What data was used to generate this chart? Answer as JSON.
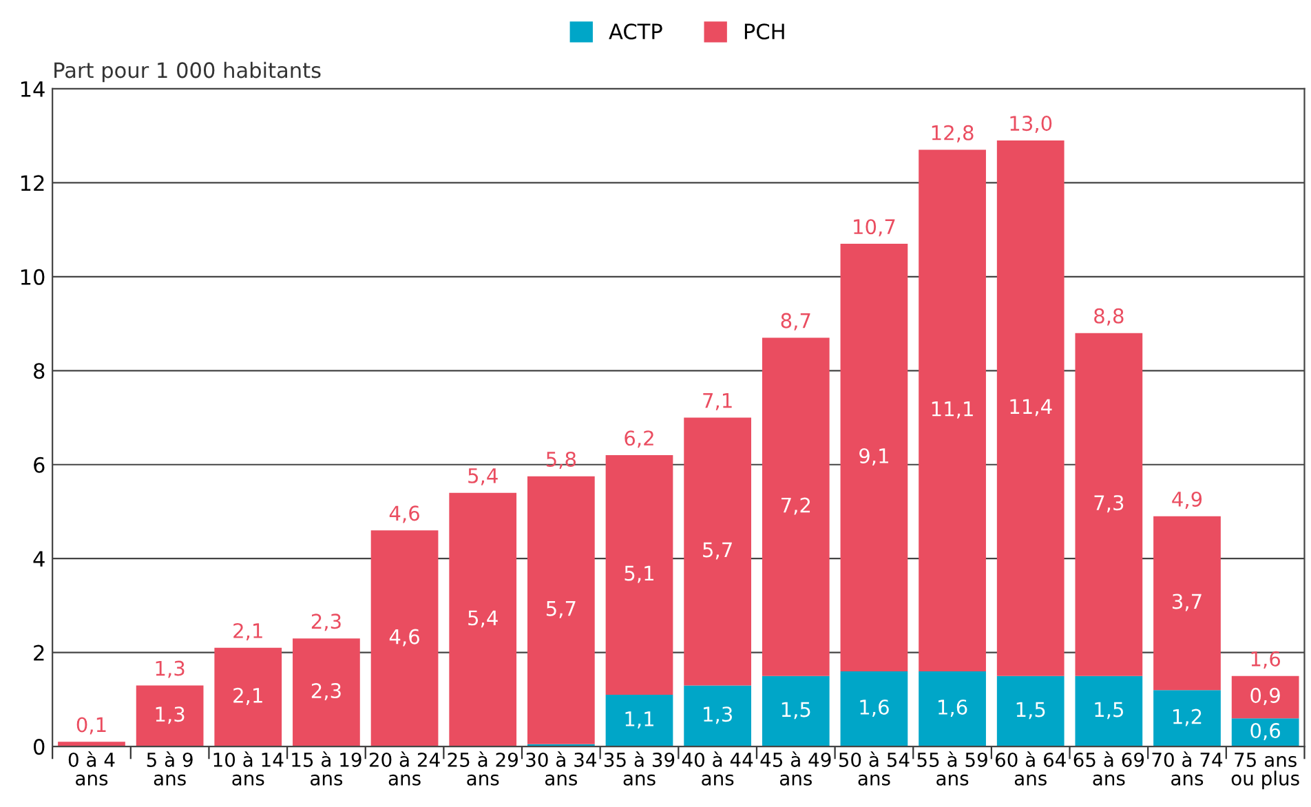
{
  "chart_data": {
    "type": "bar",
    "stacked": true,
    "ylabel": "Part pour 1 000 habitants",
    "categories": [
      "0 à 4\nans",
      "5 à 9\nans",
      "10 à 14\nans",
      "15 à 19\nans",
      "20 à 24\nans",
      "25 à 29\nans",
      "30 à 34\nans",
      "35 à 39\nans",
      "40 à 44\nans",
      "45 à 49\nans",
      "50 à 54\nans",
      "55 à 59\nans",
      "60 à 64\nans",
      "65 à 69\nans",
      "70 à 74\nans",
      "75 ans\nou plus"
    ],
    "series": [
      {
        "name": "ACTP",
        "color": "#00a6c8",
        "values": [
          0,
          0,
          0,
          0,
          0,
          0,
          0.05,
          1.1,
          1.3,
          1.5,
          1.6,
          1.6,
          1.5,
          1.5,
          1.2,
          0.6
        ],
        "value_labels": [
          null,
          null,
          null,
          null,
          null,
          null,
          null,
          "1,1",
          "1,3",
          "1,5",
          "1,6",
          "1,6",
          "1,5",
          "1,5",
          "1,2",
          "0,6"
        ]
      },
      {
        "name": "PCH",
        "color": "#ea4d60",
        "values": [
          0.1,
          1.3,
          2.1,
          2.3,
          4.6,
          5.4,
          5.7,
          5.1,
          5.7,
          7.2,
          9.1,
          11.1,
          11.4,
          7.3,
          3.7,
          0.9
        ],
        "value_labels": [
          null,
          "1,3",
          "2,1",
          "2,3",
          "4,6",
          "5,4",
          "5,7",
          "5,1",
          "5,7",
          "7,2",
          "9,1",
          "11,1",
          "11,4",
          "7,3",
          "3,7",
          "0,9"
        ]
      }
    ],
    "totals": [
      "0,1",
      "1,3",
      "2,1",
      "2,3",
      "4,6",
      "5,4",
      "5,8",
      "6,2",
      "7,1",
      "8,7",
      "10,7",
      "12,8",
      "13,0",
      "8,8",
      "4,9",
      "1,6"
    ],
    "ylim": [
      0,
      14
    ],
    "yticks": [
      0,
      2,
      4,
      6,
      8,
      10,
      12,
      14
    ],
    "grid": "y",
    "legend": "top"
  }
}
